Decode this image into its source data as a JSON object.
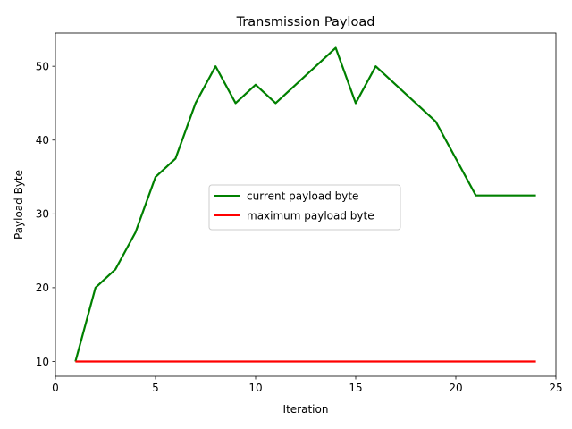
{
  "chart_data": {
    "type": "line",
    "title": "Transmission Payload",
    "xlabel": "Iteration",
    "ylabel": "Payload Byte",
    "xlim": [
      0,
      25
    ],
    "ylim": [
      8,
      54.5
    ],
    "xticks": [
      0,
      5,
      10,
      15,
      20,
      25
    ],
    "yticks": [
      10,
      20,
      30,
      40,
      50
    ],
    "grid": false,
    "legend_position": "center-right",
    "series": [
      {
        "name": "current payload byte",
        "color": "#008000",
        "x": [
          1,
          2,
          3,
          4,
          5,
          6,
          7,
          8,
          9,
          10,
          11,
          12,
          13,
          14,
          15,
          16,
          17,
          18,
          19,
          20,
          21,
          22,
          23,
          24
        ],
        "y": [
          10,
          20,
          22.5,
          27.5,
          35,
          37.5,
          45,
          50,
          45,
          47.5,
          45,
          47.5,
          50,
          52.5,
          45,
          50,
          47.5,
          45,
          42.5,
          37.5,
          32.5,
          32.5,
          32.5,
          32.5
        ]
      },
      {
        "name": "maximum payload byte",
        "color": "#ff0000",
        "x": [
          1,
          2,
          3,
          4,
          5,
          6,
          7,
          8,
          9,
          10,
          11,
          12,
          13,
          14,
          15,
          16,
          17,
          18,
          19,
          20,
          21,
          22,
          23,
          24
        ],
        "y": [
          10,
          10,
          10,
          10,
          10,
          10,
          10,
          10,
          10,
          10,
          10,
          10,
          10,
          10,
          10,
          10,
          10,
          10,
          10,
          10,
          10,
          10,
          10,
          10
        ]
      }
    ]
  }
}
